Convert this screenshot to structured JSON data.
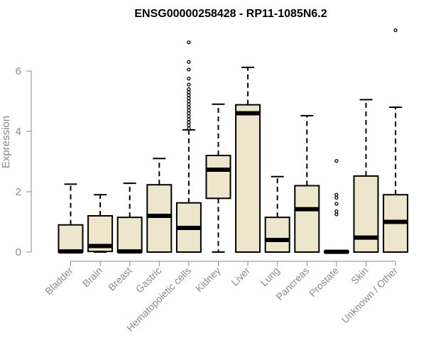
{
  "chart_data": {
    "type": "boxplot",
    "title": "ENSG00000258428 - RP11-1085N6.2",
    "ylabel": "Expression",
    "xlabel": "",
    "ylim": [
      0,
      7.5
    ],
    "yticks": [
      0,
      2,
      4,
      6
    ],
    "grid": false,
    "legend": "none",
    "colors": {
      "box_fill": "#ede6cc",
      "stroke": "#000000",
      "axis_text": "#8a8a8a"
    },
    "categories": [
      "Bladder",
      "Brain",
      "Breast",
      "Gastric",
      "Hematopoietic cells",
      "Kidney",
      "Liver",
      "Lung",
      "Pancreas",
      "Prostate",
      "Skin",
      "Unknown / Other"
    ],
    "boxes": [
      {
        "category": "Bladder",
        "whisker_low": 0,
        "q1": 0,
        "median": 0.02,
        "q3": 0.9,
        "whisker_high": 2.25,
        "outliers": []
      },
      {
        "category": "Brain",
        "whisker_low": 0,
        "q1": 0.02,
        "median": 0.2,
        "q3": 1.2,
        "whisker_high": 1.9,
        "outliers": []
      },
      {
        "category": "Breast",
        "whisker_low": 0,
        "q1": 0,
        "median": 0.02,
        "q3": 1.15,
        "whisker_high": 2.28,
        "outliers": []
      },
      {
        "category": "Gastric",
        "whisker_low": 0,
        "q1": 0,
        "median": 1.2,
        "q3": 2.23,
        "whisker_high": 3.1,
        "outliers": []
      },
      {
        "category": "Hematopoietic cells",
        "whisker_low": 0,
        "q1": 0,
        "median": 0.8,
        "q3": 1.63,
        "whisker_high": 4.05,
        "outliers": [
          4.1,
          4.2,
          4.3,
          4.4,
          4.5,
          4.6,
          4.7,
          4.8,
          4.9,
          5.0,
          5.1,
          5.2,
          5.3,
          5.4,
          5.55,
          5.75,
          6.05,
          6.3,
          6.95
        ]
      },
      {
        "category": "Kidney",
        "whisker_low": 0,
        "q1": 1.78,
        "median": 2.73,
        "q3": 3.2,
        "whisker_high": 4.9,
        "outliers": []
      },
      {
        "category": "Liver",
        "whisker_low": 0,
        "q1": 0,
        "median": 4.6,
        "q3": 4.88,
        "whisker_high": 6.12,
        "outliers": []
      },
      {
        "category": "Lung",
        "whisker_low": 0,
        "q1": 0,
        "median": 0.4,
        "q3": 1.15,
        "whisker_high": 2.5,
        "outliers": []
      },
      {
        "category": "Pancreas",
        "whisker_low": 0,
        "q1": 0,
        "median": 1.42,
        "q3": 2.2,
        "whisker_high": 4.52,
        "outliers": []
      },
      {
        "category": "Prostate",
        "whisker_low": 0,
        "q1": 0,
        "median": 0.01,
        "q3": 0.02,
        "whisker_high": 0.03,
        "outliers": [
          1.25,
          1.35,
          1.6,
          1.8,
          1.9,
          3.02
        ]
      },
      {
        "category": "Skin",
        "whisker_low": 0,
        "q1": 0,
        "median": 0.48,
        "q3": 2.52,
        "whisker_high": 5.05,
        "outliers": []
      },
      {
        "category": "Unknown / Other",
        "whisker_low": 0,
        "q1": 0,
        "median": 1.0,
        "q3": 1.9,
        "whisker_high": 4.8,
        "outliers": [
          7.35
        ]
      }
    ]
  }
}
